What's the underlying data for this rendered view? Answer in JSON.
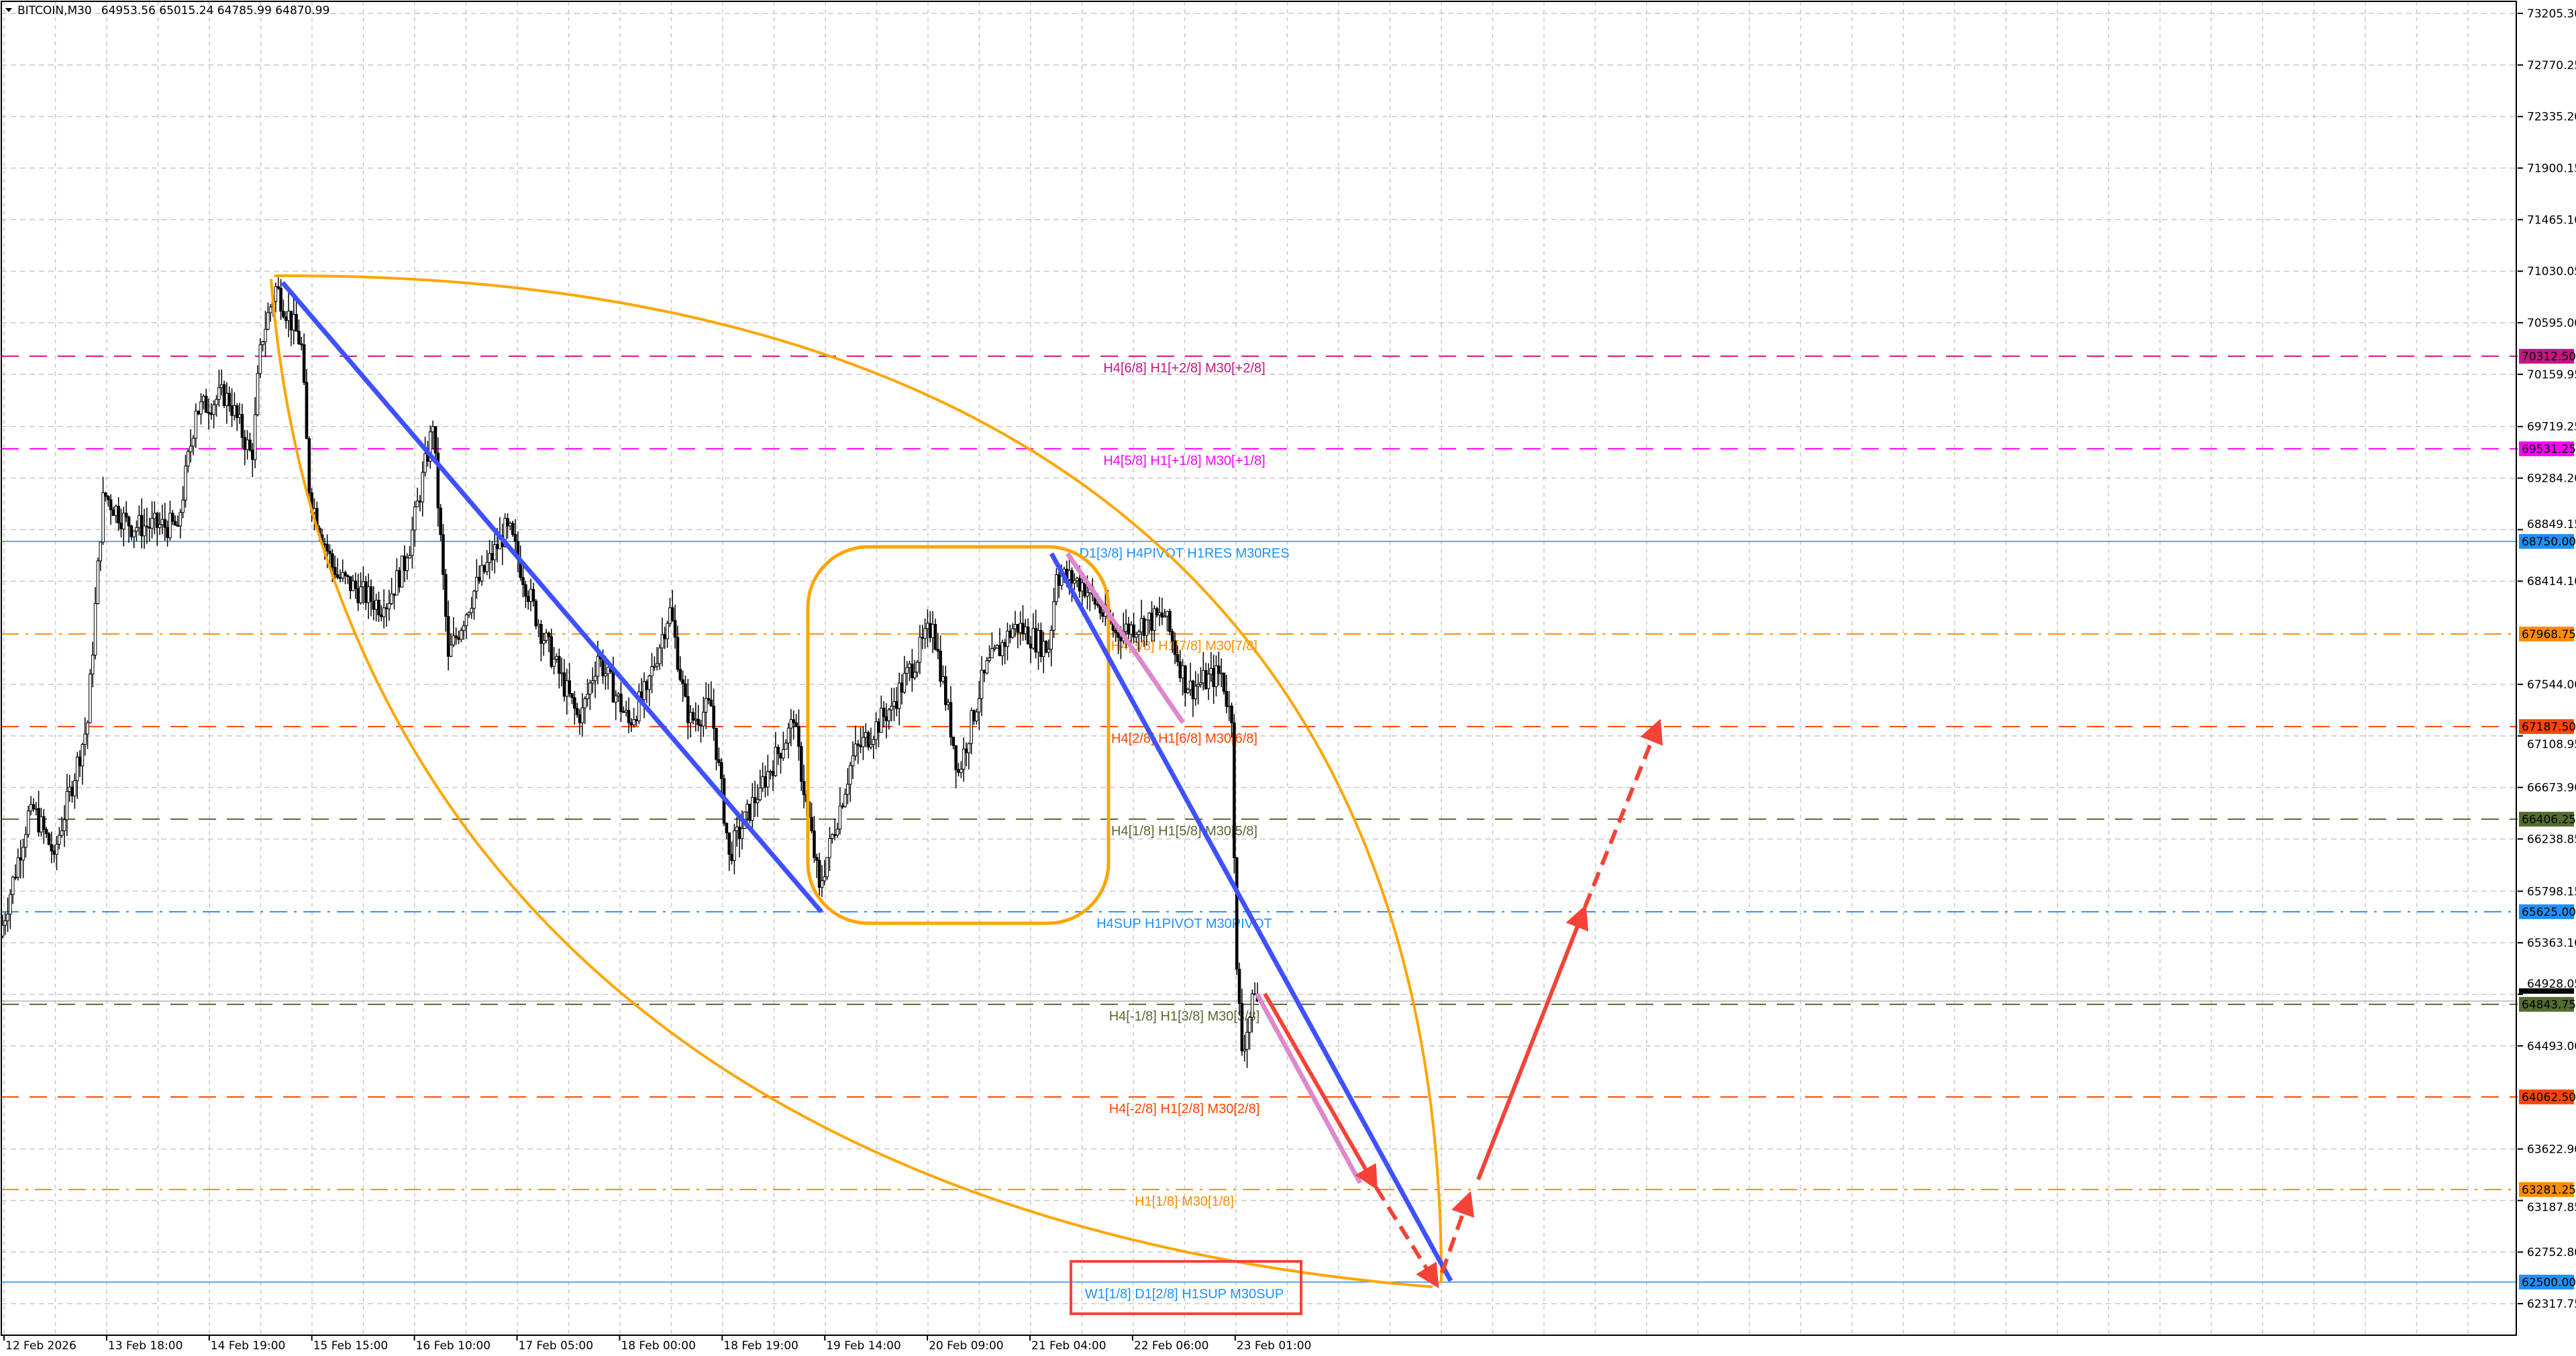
{
  "header": {
    "symbol": "BITCOIN,M30",
    "ohlc": "64953.56 65015.24 64785.99 64870.99",
    "collapse_icon": "triangle-down-icon"
  },
  "chart_data": {
    "type": "candlestick",
    "symbol": "BITCOIN",
    "timeframe": "M30",
    "last_price": "64870.99",
    "ylim": [
      62150,
      73300
    ],
    "grid": true,
    "y_ticks": [
      "73205.30",
      "72770.25",
      "72335.20",
      "71900.15",
      "71465.10",
      "71030.05",
      "70595.00",
      "70159.95",
      "69719.25",
      "69284.20",
      "68849.15",
      "68414.10",
      "67544.00",
      "67108.95",
      "66673.90",
      "66238.85",
      "65798.15",
      "65363.10",
      "64928.05",
      "64493.00",
      "63622.90",
      "63187.85",
      "62752.80",
      "62317.75"
    ],
    "x_ticks": [
      "12 Feb 2026",
      "13 Feb 18:00",
      "14 Feb 19:00",
      "15 Feb 15:00",
      "16 Feb 10:00",
      "17 Feb 05:00",
      "18 Feb 00:00",
      "18 Feb 19:00",
      "19 Feb 14:00",
      "20 Feb 09:00",
      "21 Feb 04:00",
      "22 Feb 06:00",
      "23 Feb 01:00"
    ],
    "price_path_bar_close": [
      [
        1,
        65420
      ],
      [
        13,
        66530
      ],
      [
        22,
        66110
      ],
      [
        35,
        67220
      ],
      [
        41,
        69160
      ],
      [
        51,
        68880
      ],
      [
        70,
        68880
      ],
      [
        77,
        69850
      ],
      [
        89,
        70000
      ],
      [
        99,
        69440
      ],
      [
        102,
        70410
      ],
      [
        108,
        70900
      ],
      [
        118,
        70410
      ],
      [
        121,
        69160
      ],
      [
        131,
        68470
      ],
      [
        150,
        68190
      ],
      [
        159,
        68610
      ],
      [
        169,
        69720
      ],
      [
        175,
        67780
      ],
      [
        185,
        68330
      ],
      [
        198,
        68880
      ],
      [
        210,
        68050
      ],
      [
        226,
        67220
      ],
      [
        233,
        67780
      ],
      [
        245,
        67220
      ],
      [
        252,
        67500
      ],
      [
        261,
        68190
      ],
      [
        268,
        67220
      ],
      [
        277,
        67360
      ],
      [
        284,
        66110
      ],
      [
        296,
        66670
      ],
      [
        309,
        67220
      ],
      [
        319,
        65830
      ],
      [
        332,
        66940
      ],
      [
        347,
        67360
      ],
      [
        363,
        68050
      ],
      [
        373,
        66800
      ],
      [
        383,
        67640
      ],
      [
        395,
        68050
      ],
      [
        408,
        67840
      ],
      [
        411,
        68470
      ],
      [
        421,
        68400
      ],
      [
        434,
        67980
      ],
      [
        453,
        68120
      ],
      [
        462,
        67500
      ],
      [
        475,
        67640
      ],
      [
        479,
        67220
      ],
      [
        481,
        65140
      ],
      [
        483,
        64450
      ],
      [
        488,
        64930
      ],
      [
        489,
        64870.99
      ]
    ],
    "levels": [
      {
        "price": 70312.5,
        "price_label": "70312.50",
        "text": "H4[6/8] H1[+2/8] M30[+2/8]",
        "color": "#c71585",
        "style": "dash"
      },
      {
        "price": 69531.25,
        "price_label": "69531.25",
        "text": "H4[5/8] H1[+1/8] M30[+1/8]",
        "color": "#ff00ff",
        "style": "dash"
      },
      {
        "price": 68750.0,
        "price_label": "68750.00",
        "text": "D1[3/8] H4PIVOT H1RES M30RES",
        "color": "#1e90ff",
        "style": "solid"
      },
      {
        "price": 67968.75,
        "price_label": "67968.75",
        "text": "H4[3/8] H1[7/8] M30[7/8]",
        "color": "#ff8c00",
        "style": "dashdot"
      },
      {
        "price": 67187.5,
        "price_label": "67187.50",
        "text": "H4[2/8] H1[6/8] M30[6/8]",
        "color": "#ff4500",
        "style": "dash"
      },
      {
        "price": 66406.25,
        "price_label": "66406.25",
        "text": "H4[1/8] H1[5/8] M30[5/8]",
        "color": "#556b2f",
        "style": "dash"
      },
      {
        "price": 65625.0,
        "price_label": "65625.00",
        "text": "H4SUP H1PIVOT M30PIVOT",
        "color": "#1e90ff",
        "style": "dashdot"
      },
      {
        "price": 64843.75,
        "price_label": "64843.75",
        "text": "H4[-1/8] H1[3/8] M30[3/8]",
        "color": "#556b2f",
        "style": "dash"
      },
      {
        "price": 64062.5,
        "price_label": "64062.50",
        "text": "H4[-2/8] H1[2/8] M30[2/8]",
        "color": "#ff4500",
        "style": "dash"
      },
      {
        "price": 63281.25,
        "price_label": "63281.25",
        "text": "H1[1/8] M30[1/8]",
        "color": "#ff8c00",
        "style": "dashdot"
      },
      {
        "price": 62500.0,
        "price_label": "62500.00",
        "text": "W1[1/8] D1[2/8] H1SUP M30SUP",
        "color": "#1e90ff",
        "style": "solid"
      }
    ],
    "colors": {
      "trendline": "#3f51ff",
      "channel": "#dd88cc",
      "arrow": "#f44336",
      "arc": "#ffa500",
      "highlight_box": "#f44336"
    }
  }
}
